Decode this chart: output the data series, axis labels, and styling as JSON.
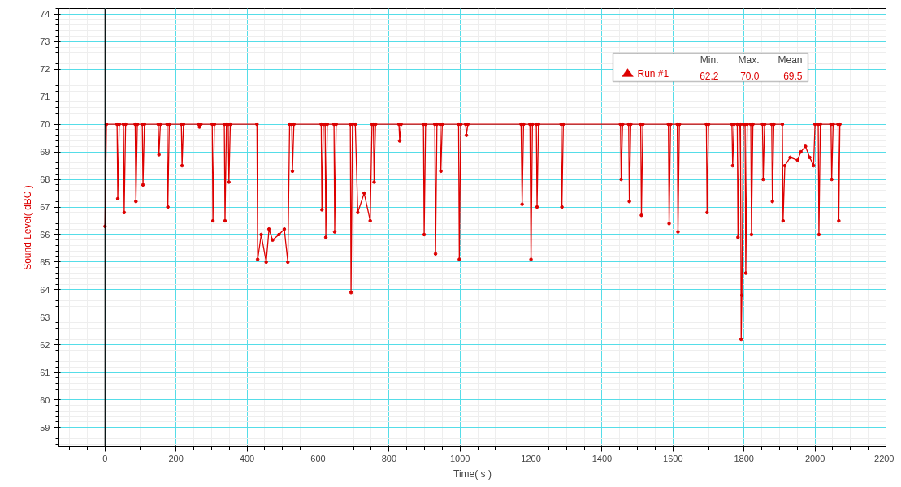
{
  "chart_data": {
    "type": "line",
    "xlabel": "Time( s )",
    "ylabel": "Sound Level( dBC )",
    "xlim": [
      -130,
      2200
    ],
    "ylim": [
      58.3,
      74.2
    ],
    "xticks": [
      0,
      200,
      400,
      600,
      800,
      1000,
      1200,
      1400,
      1600,
      1800,
      2000,
      2200
    ],
    "yticks": [
      59,
      60,
      61,
      62,
      63,
      64,
      65,
      66,
      67,
      68,
      69,
      70,
      71,
      72,
      73,
      74
    ],
    "grid": true,
    "legend": "top right",
    "marker": "circle",
    "line_style": "solid",
    "ref_lines": [
      {
        "axis": "x",
        "value": 0,
        "color": "#000000"
      }
    ],
    "annotations": [
      "Min.",
      "Max.",
      "Mean",
      "62.2",
      "70.0",
      "69.5"
    ],
    "series": [
      {
        "name": "Run #1",
        "color": "#dd0000",
        "x": [
          0,
          4,
          34,
          36,
          40,
          52,
          54,
          58,
          85,
          87,
          91,
          105,
          107,
          111,
          150,
          152,
          156,
          175,
          177,
          181,
          215,
          217,
          221,
          264,
          266,
          270,
          302,
          304,
          308,
          336,
          338,
          342,
          347,
          349,
          353,
          428,
          430,
          440,
          454,
          462,
          472,
          490,
          505,
          515,
          520,
          526,
          528,
          532,
          609,
          611,
          615,
          620,
          622,
          626,
          645,
          647,
          651,
          691,
          693,
          697,
          705,
          712,
          730,
          747,
          752,
          756,
          758,
          762,
          828,
          830,
          834,
          897,
          899,
          903,
          929,
          931,
          935,
          944,
          946,
          950,
          996,
          998,
          1002,
          1016,
          1018,
          1022,
          1172,
          1175,
          1179,
          1197,
          1200,
          1204,
          1215,
          1217,
          1221,
          1285,
          1287,
          1291,
          1452,
          1454,
          1458,
          1475,
          1477,
          1481,
          1509,
          1511,
          1515,
          1587,
          1589,
          1593,
          1612,
          1614,
          1618,
          1694,
          1696,
          1700,
          1766,
          1768,
          1772,
          1781,
          1783,
          1787,
          1790,
          1792,
          1794,
          1798,
          1803,
          1805,
          1809,
          1819,
          1821,
          1825,
          1852,
          1854,
          1858,
          1878,
          1880,
          1884,
          1908,
          1910,
          1915,
          1930,
          1951,
          1960,
          1973,
          1985,
          1996,
          2000,
          2009,
          2011,
          2015,
          2045,
          2047,
          2051,
          2065,
          2067,
          2070
        ],
        "values": [
          66.3,
          70,
          70,
          67.3,
          70,
          70,
          66.8,
          70,
          70,
          67.2,
          70,
          70,
          67.8,
          70,
          70,
          68.9,
          70,
          70,
          67.0,
          70,
          70,
          68.5,
          70,
          70,
          69.9,
          70,
          70,
          66.5,
          70,
          70,
          66.5,
          70,
          70,
          67.9,
          70,
          70,
          65.1,
          66.0,
          65.0,
          66.2,
          65.8,
          66.0,
          66.2,
          65.0,
          70,
          70,
          68.3,
          70,
          70,
          66.9,
          70,
          70,
          65.9,
          70,
          70,
          66.1,
          70,
          70,
          63.9,
          70,
          70,
          66.8,
          67.5,
          66.5,
          70,
          70,
          67.9,
          70,
          70,
          69.4,
          70,
          70,
          66.0,
          70,
          70,
          65.3,
          70,
          70,
          68.3,
          70,
          70,
          65.1,
          70,
          70,
          69.6,
          70,
          70,
          67.1,
          70,
          70,
          65.1,
          70,
          70,
          67.0,
          70,
          70,
          67.0,
          70,
          70,
          68.0,
          70,
          70,
          67.2,
          70,
          70,
          66.7,
          70,
          70,
          66.4,
          70,
          70,
          66.1,
          70,
          70,
          66.8,
          70,
          70,
          68.5,
          70,
          70,
          65.9,
          70,
          70,
          62.2,
          63.8,
          70,
          70,
          64.6,
          70,
          70,
          66.0,
          70,
          70,
          68.0,
          70,
          70,
          67.2,
          70,
          70,
          66.5,
          68.5,
          68.8,
          68.7,
          69.0,
          69.2,
          68.8,
          68.5,
          70,
          70,
          66.0,
          70,
          70,
          68.0,
          70,
          70,
          66.5,
          70
        ]
      }
    ]
  }
}
